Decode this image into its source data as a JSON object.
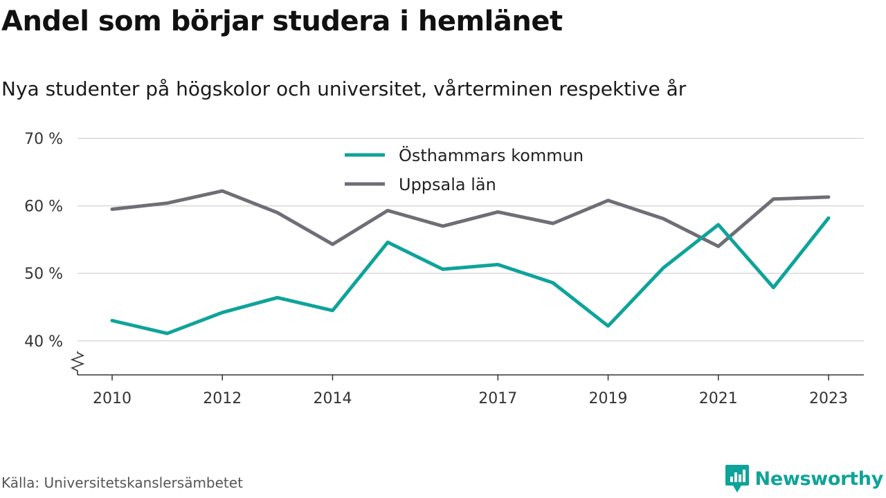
{
  "title": "Andel som börjar studera i hemlänet",
  "subtitle": "Nya studenter på högskolor och universitet, vårterminen respektive år",
  "source": "Källa: Universitetskanslersämbetet",
  "brand": {
    "name": "Newsworthy",
    "icon": "newsworthy-logo-icon",
    "color": "#0ea39a"
  },
  "chart_data": {
    "type": "line",
    "x": [
      2010,
      2011,
      2012,
      2013,
      2014,
      2015,
      2016,
      2017,
      2018,
      2019,
      2020,
      2021,
      2022,
      2023
    ],
    "x_tick_labels": [
      "2010",
      "2012",
      "2014",
      "2017",
      "2019",
      "2021",
      "2023"
    ],
    "y_tick_values": [
      40,
      50,
      60,
      70
    ],
    "y_tick_labels": [
      "40 %",
      "50 %",
      "60 %",
      "70 %"
    ],
    "ylim": [
      35,
      70
    ],
    "xlabel": "",
    "ylabel": "",
    "grid": true,
    "axis_break": true,
    "legend_position": "top-center",
    "series": [
      {
        "name": "Östhammars kommun",
        "color": "#0ea39a",
        "values": [
          43.0,
          41.1,
          44.2,
          46.4,
          44.5,
          54.6,
          50.6,
          51.3,
          48.6,
          42.2,
          50.8,
          57.2,
          47.9,
          58.2
        ]
      },
      {
        "name": "Uppsala län",
        "color": "#6e6e76",
        "values": [
          59.5,
          60.4,
          62.2,
          59.0,
          54.3,
          59.3,
          57.0,
          59.1,
          57.4,
          60.8,
          58.1,
          54.0,
          61.0,
          61.3
        ]
      }
    ]
  }
}
